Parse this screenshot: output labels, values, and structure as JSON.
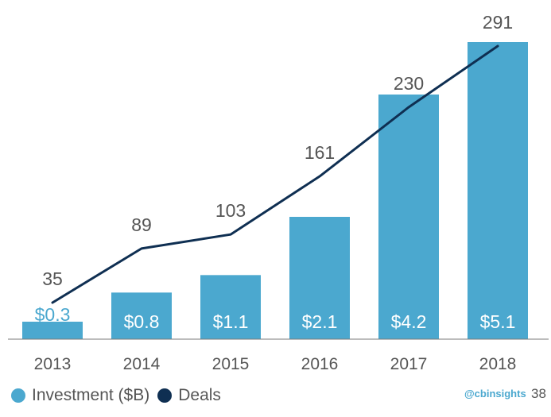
{
  "chart_data": {
    "type": "bar",
    "categories": [
      "2013",
      "2014",
      "2015",
      "2016",
      "2017",
      "2018"
    ],
    "series": [
      {
        "name": "Investment ($B)",
        "type": "bar",
        "values": [
          0.3,
          0.8,
          1.1,
          2.1,
          4.2,
          5.1
        ],
        "labels": [
          "$0.3",
          "$0.8",
          "$1.1",
          "$2.1",
          "$4.2",
          "$5.1"
        ],
        "color": "#4ba8cf"
      },
      {
        "name": "Deals",
        "type": "line",
        "values": [
          35,
          89,
          103,
          161,
          230,
          291
        ],
        "color": "#0f2f52"
      }
    ],
    "legend_position": "bottom-left",
    "grid": false
  },
  "legend": {
    "investment_label": "Investment ($B)",
    "deals_label": "Deals"
  },
  "footer": {
    "brand": "@cbinsights",
    "page": "38"
  },
  "colors": {
    "bar": "#4ba8cf",
    "line": "#0f2f52",
    "text": "#555555"
  }
}
